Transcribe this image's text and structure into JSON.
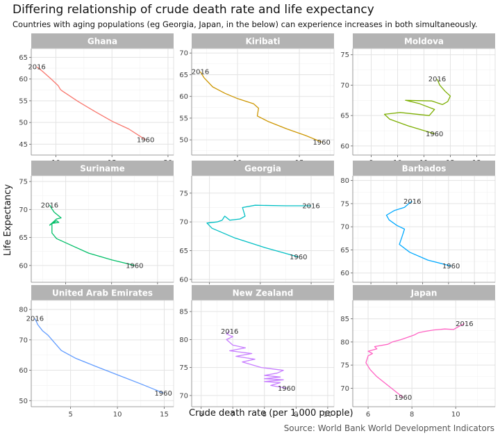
{
  "title": "Differing relationship of crude death rate and life expectancy",
  "subtitle": "Countries with aging populations (eg Georgia, Japan, in the below) can experience increases in both simultaneously.",
  "caption": "Source: World Bank World Development Indicators",
  "chart_data": {
    "type": "line",
    "xlabel": "Crude death rate (per 1,000 people)",
    "ylabel": "Life Expectancy",
    "grid": true,
    "legend": "none",
    "panels": [
      {
        "name": "Ghana",
        "color": "#F8766D",
        "xlim": [
          7.8,
          20.5
        ],
        "ylim": [
          42.5,
          67
        ],
        "xticks": [
          10,
          15,
          20
        ],
        "yticks": [
          45,
          50,
          55,
          60,
          65
        ],
        "start_label": "1960",
        "end_label": "2016",
        "points": [
          [
            18.0,
            46
          ],
          [
            16.5,
            48.5
          ],
          [
            15,
            50.3
          ],
          [
            13.5,
            52.5
          ],
          [
            12,
            54.8
          ],
          [
            10.6,
            57.2
          ],
          [
            10.4,
            57.6
          ],
          [
            10.2,
            58.5
          ],
          [
            9.5,
            60.2
          ],
          [
            8.8,
            61.8
          ],
          [
            8.3,
            62.8
          ]
        ]
      },
      {
        "name": "Kiribati",
        "color": "#CD9600",
        "xlim": [
          6.3,
          17.8
        ],
        "ylim": [
          46.5,
          71
        ],
        "xticks": [
          10,
          15
        ],
        "yticks": [
          50,
          55,
          60,
          65,
          70
        ],
        "start_label": "1960",
        "end_label": "2016",
        "points": [
          [
            16.8,
            49.5
          ],
          [
            15.5,
            51
          ],
          [
            14,
            52.5
          ],
          [
            12.5,
            54.2
          ],
          [
            11.6,
            55.5
          ],
          [
            11.7,
            57.3
          ],
          [
            11.3,
            58.3
          ],
          [
            10,
            59.5
          ],
          [
            9,
            60.7
          ],
          [
            8,
            62.2
          ],
          [
            7.3,
            64.3
          ],
          [
            7.0,
            65.7
          ]
        ]
      },
      {
        "name": "Moldova",
        "color": "#7CAE00",
        "xlim": [
          8.3,
          13.7
        ],
        "ylim": [
          58.5,
          76
        ],
        "xticks": [
          9,
          10,
          11,
          12,
          13
        ],
        "yticks": [
          60,
          65,
          70,
          75
        ],
        "start_label": "1960",
        "end_label": "2016",
        "points": [
          [
            11.4,
            62.0
          ],
          [
            10.4,
            63.3
          ],
          [
            9.7,
            64.4
          ],
          [
            9.5,
            65.2
          ],
          [
            10.1,
            65.5
          ],
          [
            11.2,
            65.0
          ],
          [
            11.4,
            66.0
          ],
          [
            10.8,
            67.0
          ],
          [
            10.3,
            67.5
          ],
          [
            11.3,
            67.4
          ],
          [
            11.7,
            66.8
          ],
          [
            11.9,
            67.3
          ],
          [
            12.0,
            68.2
          ],
          [
            11.8,
            69.0
          ],
          [
            11.6,
            70.0
          ],
          [
            11.5,
            71.0
          ]
        ]
      },
      {
        "name": "Suriname",
        "color": "#00BE67",
        "xlim": [
          6.5,
          12.7
        ],
        "ylim": [
          57,
          76
        ],
        "xticks": [
          8,
          10,
          12
        ],
        "yticks": [
          60,
          65,
          70,
          75
        ],
        "start_label": "1960",
        "end_label": "2016",
        "points": [
          [
            11.0,
            60.0
          ],
          [
            10.0,
            61.0
          ],
          [
            9.0,
            62.2
          ],
          [
            8.3,
            63.5
          ],
          [
            7.6,
            64.8
          ],
          [
            7.4,
            65.8
          ],
          [
            7.4,
            67.5
          ],
          [
            7.7,
            67.7
          ],
          [
            7.6,
            68.0
          ],
          [
            7.3,
            67.2
          ],
          [
            7.6,
            68.3
          ],
          [
            7.8,
            68.5
          ],
          [
            7.5,
            69.5
          ],
          [
            7.4,
            70.1
          ],
          [
            7.3,
            70.8
          ]
        ]
      },
      {
        "name": "Georgia",
        "color": "#00BFC4",
        "xlim": [
          8.3,
          13.9
        ],
        "ylim": [
          59.5,
          78
        ],
        "xticks": [
          9,
          11,
          13
        ],
        "yticks": [
          60,
          65,
          70,
          75
        ],
        "start_label": "1960",
        "end_label": "2016",
        "points": [
          [
            12.5,
            63.9
          ],
          [
            11.2,
            65.5
          ],
          [
            10.0,
            67.2
          ],
          [
            9.1,
            68.9
          ],
          [
            8.9,
            69.8
          ],
          [
            9.3,
            70.0
          ],
          [
            9.5,
            70.3
          ],
          [
            9.6,
            71.0
          ],
          [
            9.8,
            70.3
          ],
          [
            10.2,
            70.5
          ],
          [
            10.4,
            71.0
          ],
          [
            10.3,
            72.5
          ],
          [
            10.8,
            72.9
          ],
          [
            12.0,
            72.8
          ],
          [
            13.0,
            72.8
          ]
        ]
      },
      {
        "name": "Barbados",
        "color": "#00A9FF",
        "xlim": [
          8.3,
          13.8
        ],
        "ylim": [
          58,
          81
        ],
        "xticks": [
          9,
          10,
          11,
          12,
          13
        ],
        "yticks": [
          60,
          65,
          70,
          75,
          80
        ],
        "start_label": "1960",
        "end_label": "2016",
        "points": [
          [
            12.1,
            61.5
          ],
          [
            11.2,
            62.8
          ],
          [
            10.5,
            64.5
          ],
          [
            10.1,
            66.2
          ],
          [
            10.2,
            67.8
          ],
          [
            10.3,
            69.5
          ],
          [
            10.0,
            70.3
          ],
          [
            9.7,
            71.5
          ],
          [
            9.6,
            72.5
          ],
          [
            9.9,
            73.5
          ],
          [
            10.3,
            74.2
          ],
          [
            10.5,
            75.2
          ],
          [
            10.6,
            75.5
          ]
        ]
      },
      {
        "name": "United Arab Emirates",
        "color": "#619CFF",
        "xlim": [
          0.8,
          16
        ],
        "ylim": [
          48,
          83
        ],
        "xticks": [
          5,
          10,
          15
        ],
        "yticks": [
          50,
          60,
          70,
          80
        ],
        "start_label": "1960",
        "end_label": "2016",
        "points": [
          [
            14.9,
            52.5
          ],
          [
            12.5,
            55.5
          ],
          [
            10,
            58.5
          ],
          [
            7.5,
            61.5
          ],
          [
            5.5,
            64.0
          ],
          [
            4,
            66.5
          ],
          [
            3.3,
            69.0
          ],
          [
            2.6,
            71.5
          ],
          [
            2.0,
            73.0
          ],
          [
            1.5,
            75.0
          ],
          [
            1.2,
            77.0
          ]
        ]
      },
      {
        "name": "New Zealand",
        "color": "#C77CFF",
        "xlim": [
          5.7,
          10.2
        ],
        "ylim": [
          68,
          87
        ],
        "xticks": [
          6,
          7,
          8,
          9,
          10
        ],
        "yticks": [
          70,
          75,
          80,
          85
        ],
        "start_label": "1960",
        "end_label": "2016",
        "points": [
          [
            8.7,
            71.3
          ],
          [
            8.2,
            71.8
          ],
          [
            8.5,
            72.3
          ],
          [
            8.0,
            72.5
          ],
          [
            8.6,
            72.8
          ],
          [
            8.0,
            73.0
          ],
          [
            8.5,
            73.3
          ],
          [
            8.0,
            73.6
          ],
          [
            8.4,
            74.0
          ],
          [
            8.6,
            74.5
          ],
          [
            7.9,
            75.0
          ],
          [
            7.6,
            75.5
          ],
          [
            7.3,
            76.0
          ],
          [
            7.7,
            76.5
          ],
          [
            7.1,
            77.0
          ],
          [
            7.6,
            77.5
          ],
          [
            6.9,
            78.0
          ],
          [
            7.4,
            78.5
          ],
          [
            7.0,
            79.0
          ],
          [
            6.9,
            79.5
          ],
          [
            6.8,
            80.0
          ],
          [
            7.0,
            80.5
          ],
          [
            6.8,
            81.0
          ],
          [
            6.9,
            81.5
          ]
        ]
      },
      {
        "name": "Japan",
        "color": "#FF61C3",
        "xlim": [
          5.3,
          11.8
        ],
        "ylim": [
          66,
          89
        ],
        "xticks": [
          6,
          8,
          10
        ],
        "yticks": [
          70,
          75,
          80,
          85
        ],
        "start_label": "1960",
        "end_label": "2016",
        "points": [
          [
            7.6,
            68.0
          ],
          [
            7.2,
            69.5
          ],
          [
            6.8,
            71.0
          ],
          [
            6.4,
            72.5
          ],
          [
            6.1,
            74.0
          ],
          [
            5.9,
            75.5
          ],
          [
            6.0,
            77.0
          ],
          [
            6.2,
            77.5
          ],
          [
            6.0,
            78.0
          ],
          [
            6.4,
            78.5
          ],
          [
            6.3,
            79.0
          ],
          [
            6.9,
            79.5
          ],
          [
            7.1,
            80.0
          ],
          [
            7.5,
            80.5
          ],
          [
            7.8,
            81.0
          ],
          [
            8.1,
            81.5
          ],
          [
            8.3,
            82.0
          ],
          [
            8.6,
            82.3
          ],
          [
            9.0,
            82.6
          ],
          [
            9.5,
            82.8
          ],
          [
            9.9,
            82.7
          ],
          [
            10.2,
            83.5
          ],
          [
            10.4,
            84.0
          ]
        ]
      }
    ]
  }
}
